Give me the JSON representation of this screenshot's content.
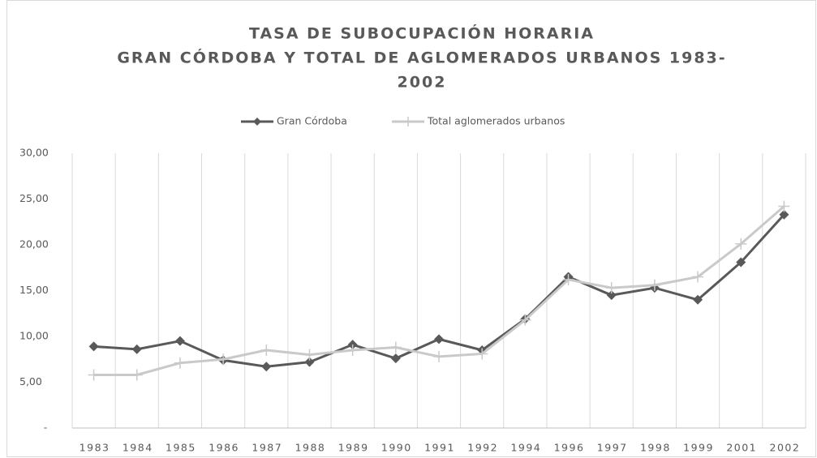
{
  "chart_data": {
    "type": "line",
    "title": [
      "TASA DE SUBOCUPACIÓN HORARIA",
      "GRAN CÓRDOBA Y TOTAL DE AGLOMERADOS URBANOS 1983-",
      "2002"
    ],
    "categories": [
      "1983",
      "1984",
      "1985",
      "1986",
      "1987",
      "1988",
      "1989",
      "1990",
      "1991",
      "1992",
      "1994",
      "1996",
      "1997",
      "1998",
      "1999",
      "2001",
      "2002"
    ],
    "series": [
      {
        "name": "Gran Córdoba",
        "color": "#595959",
        "marker": "diamond",
        "values": [
          8.9,
          8.6,
          9.5,
          7.4,
          6.7,
          7.2,
          9.1,
          7.6,
          9.7,
          8.5,
          11.9,
          16.5,
          14.5,
          15.3,
          14.0,
          18.1,
          23.3
        ]
      },
      {
        "name": "Total aglomerados urbanos",
        "color": "#c9c9c9",
        "marker": "plus",
        "values": [
          5.8,
          5.8,
          7.1,
          7.5,
          8.5,
          8.0,
          8.5,
          8.8,
          7.8,
          8.1,
          11.8,
          16.2,
          15.3,
          15.6,
          16.5,
          20.1,
          24.2
        ]
      }
    ],
    "ylim": [
      0,
      30
    ],
    "yticks": [
      {
        "value": 0,
        "label": "-"
      },
      {
        "value": 5,
        "label": "5,00"
      },
      {
        "value": 10,
        "label": "10,00"
      },
      {
        "value": 15,
        "label": "15,00"
      },
      {
        "value": 20,
        "label": "20,00"
      },
      {
        "value": 25,
        "label": "25,00"
      },
      {
        "value": 30,
        "label": "30,00"
      }
    ],
    "legend": "top"
  }
}
